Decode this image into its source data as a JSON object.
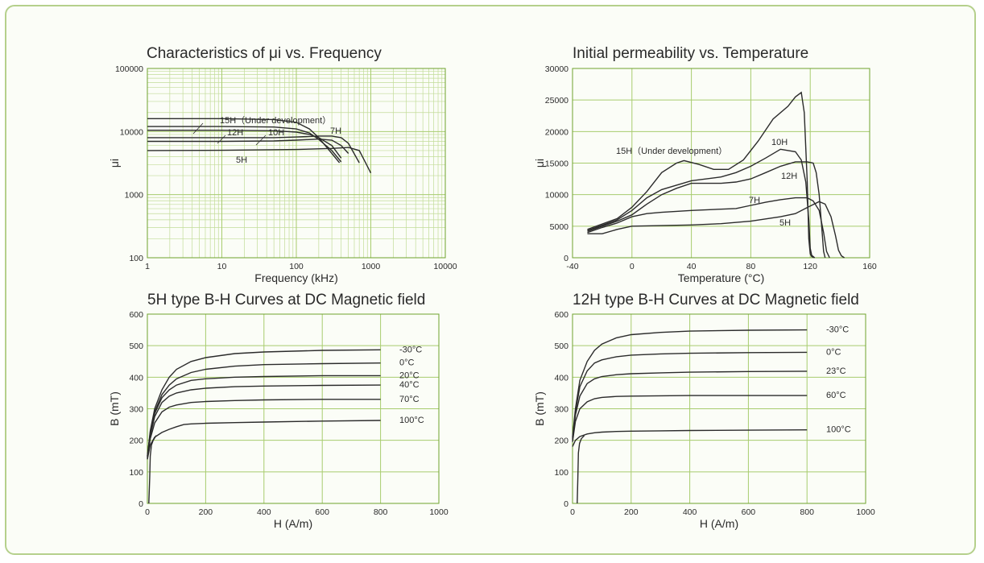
{
  "chart_data": [
    {
      "type": "line",
      "title": "Characteristics of μi vs. Frequency",
      "xlabel": "Frequency (kHz)",
      "ylabel": "μi",
      "xscale": "log",
      "yscale": "log",
      "xlim": [
        1,
        10000
      ],
      "ylim": [
        100,
        100000
      ],
      "xticks": [
        "1",
        "10",
        "100",
        "1000",
        "10000"
      ],
      "yticks": [
        "100",
        "1000",
        "10000",
        "100000"
      ],
      "grid": true,
      "series": [
        {
          "name": "15H（Under development）",
          "x": [
            1,
            10,
            50,
            100,
            150,
            200,
            300,
            380
          ],
          "y": [
            16000,
            16000,
            15500,
            14000,
            11000,
            8000,
            4500,
            3200
          ]
        },
        {
          "name": "12H",
          "x": [
            1,
            10,
            50,
            100,
            150,
            200,
            300,
            400
          ],
          "y": [
            12000,
            12000,
            11800,
            11000,
            9500,
            7500,
            5000,
            3300
          ]
        },
        {
          "name": "10H",
          "x": [
            1,
            10,
            50,
            100,
            150,
            200,
            300,
            400
          ],
          "y": [
            10500,
            10500,
            10300,
            9800,
            9000,
            8000,
            6000,
            3800
          ]
        },
        {
          "name": "7H",
          "x": [
            1,
            10,
            50,
            100,
            200,
            300,
            400,
            500,
            700
          ],
          "y": [
            8000,
            8000,
            8000,
            8200,
            8500,
            8500,
            8000,
            6500,
            3200
          ]
        },
        {
          "name": "",
          "x": [
            1,
            10,
            50,
            100,
            200,
            300,
            400,
            500
          ],
          "y": [
            7000,
            7000,
            7100,
            7300,
            7600,
            7300,
            6000,
            4500
          ]
        },
        {
          "name": "5H",
          "x": [
            1,
            10,
            100,
            300,
            500,
            700,
            850,
            1000
          ],
          "y": [
            5000,
            5050,
            5200,
            5400,
            5600,
            5000,
            3200,
            2200
          ]
        }
      ],
      "annotations": [
        "15H（Under development）",
        "12H",
        "10H",
        "7H",
        "5H"
      ]
    },
    {
      "type": "line",
      "title": "Initial permeability vs. Temperature",
      "xlabel": "Temperature (°C)",
      "ylabel": "μi",
      "xlim": [
        -40,
        160
      ],
      "ylim": [
        0,
        30000
      ],
      "xticks": [
        "-40",
        "0",
        "40",
        "80",
        "120",
        "160"
      ],
      "yticks": [
        "0",
        "5000",
        "10000",
        "15000",
        "20000",
        "25000",
        "30000"
      ],
      "grid": true,
      "series": [
        {
          "name": "15H（Under development）",
          "x": [
            -30,
            -10,
            0,
            10,
            20,
            30,
            35,
            45,
            55,
            65,
            75,
            85,
            95,
            105,
            110,
            114,
            116,
            118,
            119,
            120,
            121,
            123
          ],
          "y": [
            4500,
            6200,
            8000,
            10500,
            13500,
            15000,
            15400,
            14800,
            14000,
            14000,
            15500,
            18500,
            22000,
            24000,
            25500,
            26200,
            23000,
            12000,
            3000,
            600,
            200,
            0
          ]
        },
        {
          "name": "10H",
          "x": [
            -30,
            -10,
            0,
            10,
            20,
            30,
            40,
            60,
            70,
            80,
            90,
            100,
            110,
            114,
            117,
            119,
            120,
            121,
            123
          ],
          "y": [
            4300,
            6000,
            7500,
            9500,
            10800,
            11500,
            12200,
            12800,
            13500,
            14500,
            15800,
            17200,
            16800,
            15500,
            12000,
            6000,
            1500,
            400,
            0
          ]
        },
        {
          "name": "12H",
          "x": [
            -30,
            -10,
            0,
            10,
            20,
            30,
            40,
            60,
            70,
            80,
            90,
            100,
            110,
            118,
            122,
            124,
            126,
            128,
            129,
            130
          ],
          "y": [
            4200,
            5800,
            6800,
            8500,
            10000,
            11000,
            11800,
            11800,
            12000,
            12500,
            13500,
            14500,
            15200,
            15200,
            15000,
            13500,
            10000,
            4000,
            1000,
            0
          ]
        },
        {
          "name": "7H",
          "x": [
            -30,
            -20,
            -10,
            0,
            10,
            20,
            40,
            60,
            70,
            80,
            90,
            100,
            110,
            118,
            122,
            126,
            129,
            131,
            133
          ],
          "y": [
            4000,
            4800,
            5500,
            6500,
            7000,
            7200,
            7500,
            7700,
            7800,
            8300,
            8800,
            9200,
            9500,
            9500,
            9000,
            7500,
            4000,
            1000,
            0
          ]
        },
        {
          "name": "5H",
          "x": [
            -30,
            -20,
            -10,
            0,
            20,
            40,
            60,
            80,
            100,
            110,
            120,
            126,
            130,
            134,
            137,
            139,
            141,
            143
          ],
          "y": [
            3800,
            3800,
            4500,
            5000,
            5100,
            5200,
            5400,
            5800,
            6500,
            7000,
            8200,
            8900,
            8500,
            6500,
            3500,
            1200,
            300,
            0
          ]
        }
      ],
      "annotations": [
        "15H（Under development）",
        "10H",
        "12H",
        "7H",
        "5H"
      ]
    },
    {
      "type": "line",
      "title": "5H type B-H Curves at DC Magnetic field",
      "xlabel": "H (A/m)",
      "ylabel": "B (mT)",
      "xlim": [
        0,
        1000
      ],
      "ylim": [
        0,
        600
      ],
      "xticks": [
        "0",
        "200",
        "400",
        "600",
        "800",
        "1000"
      ],
      "yticks": [
        "0",
        "100",
        "200",
        "300",
        "400",
        "500",
        "600"
      ],
      "grid": true,
      "series": [
        {
          "name": "-30°C",
          "x": [
            0,
            10,
            25,
            50,
            75,
            100,
            150,
            200,
            300,
            400,
            600,
            800
          ],
          "y": [
            150,
            230,
            300,
            360,
            400,
            425,
            450,
            462,
            475,
            480,
            485,
            487
          ]
        },
        {
          "name": "0°C",
          "x": [
            0,
            10,
            25,
            50,
            75,
            100,
            150,
            200,
            300,
            400,
            600,
            800
          ],
          "y": [
            150,
            225,
            290,
            345,
            375,
            395,
            415,
            425,
            435,
            440,
            443,
            445
          ]
        },
        {
          "name": "20°C",
          "x": [
            0,
            10,
            25,
            50,
            75,
            100,
            150,
            200,
            300,
            400,
            600,
            800
          ],
          "y": [
            145,
            220,
            285,
            335,
            360,
            375,
            390,
            395,
            400,
            402,
            405,
            405
          ]
        },
        {
          "name": "40°C",
          "x": [
            0,
            10,
            25,
            50,
            75,
            100,
            150,
            200,
            300,
            400,
            600,
            800
          ],
          "y": [
            145,
            215,
            275,
            320,
            340,
            350,
            360,
            365,
            370,
            372,
            374,
            375
          ]
        },
        {
          "name": "70°C",
          "x": [
            0,
            10,
            25,
            50,
            75,
            100,
            150,
            200,
            300,
            400,
            600,
            800
          ],
          "y": [
            140,
            205,
            255,
            290,
            305,
            312,
            320,
            323,
            326,
            328,
            330,
            330
          ]
        },
        {
          "name": "100°C",
          "x": [
            0,
            10,
            25,
            50,
            75,
            100,
            125,
            150,
            200,
            300,
            400,
            600,
            800
          ],
          "y": [
            140,
            185,
            210,
            225,
            235,
            243,
            250,
            252,
            254,
            256,
            258,
            261,
            263
          ]
        },
        {
          "name": "",
          "x": [
            5,
            8,
            10,
            14,
            20,
            30
          ],
          "y": [
            0,
            80,
            150,
            185,
            200,
            215
          ]
        }
      ],
      "annotations": [
        "-30°C",
        "0°C",
        "20°C",
        "40°C",
        "70°C",
        "100°C"
      ]
    },
    {
      "type": "line",
      "title": "12H type B-H Curves at DC Magnetic field",
      "xlabel": "H (A/m)",
      "ylabel": "B (mT)",
      "xlim": [
        0,
        1000
      ],
      "ylim": [
        0,
        600
      ],
      "xticks": [
        "0",
        "200",
        "400",
        "600",
        "800",
        "1000"
      ],
      "yticks": [
        "0",
        "100",
        "200",
        "300",
        "400",
        "500",
        "600"
      ],
      "grid": true,
      "series": [
        {
          "name": "-30°C",
          "x": [
            0,
            10,
            25,
            50,
            75,
            100,
            150,
            200,
            300,
            400,
            600,
            800
          ],
          "y": [
            210,
            300,
            390,
            450,
            485,
            505,
            525,
            535,
            542,
            546,
            549,
            550
          ]
        },
        {
          "name": "0°C",
          "x": [
            0,
            10,
            25,
            50,
            75,
            100,
            150,
            200,
            300,
            400,
            600,
            800
          ],
          "y": [
            205,
            290,
            370,
            420,
            445,
            455,
            465,
            470,
            474,
            476,
            478,
            479
          ]
        },
        {
          "name": "23°C",
          "x": [
            0,
            10,
            25,
            50,
            75,
            100,
            150,
            200,
            300,
            400,
            600,
            800
          ],
          "y": [
            200,
            280,
            340,
            380,
            395,
            402,
            408,
            411,
            414,
            416,
            418,
            419
          ]
        },
        {
          "name": "60°C",
          "x": [
            0,
            10,
            25,
            50,
            75,
            100,
            150,
            200,
            300,
            400,
            600,
            800
          ],
          "y": [
            195,
            260,
            300,
            322,
            332,
            336,
            339,
            340,
            341,
            342,
            342,
            342
          ]
        },
        {
          "name": "100°C",
          "x": [
            0,
            10,
            25,
            50,
            75,
            100,
            150,
            200,
            300,
            400,
            600,
            800
          ],
          "y": [
            180,
            200,
            212,
            220,
            224,
            226,
            228,
            229,
            230,
            231,
            232,
            233
          ]
        },
        {
          "name": "",
          "x": [
            16,
            18,
            20,
            24,
            30,
            40
          ],
          "y": [
            0,
            80,
            160,
            190,
            205,
            215
          ]
        }
      ],
      "annotations": [
        "-30°C",
        "0°C",
        "23°C",
        "60°C",
        "100°C"
      ]
    }
  ]
}
